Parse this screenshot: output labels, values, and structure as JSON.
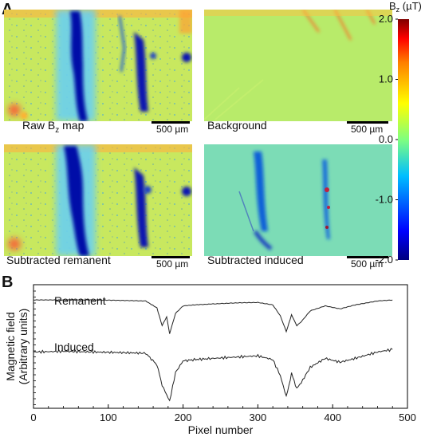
{
  "panel_labels": {
    "a": "A",
    "b": "B"
  },
  "maps": [
    {
      "id": "raw",
      "title_main": "Raw B",
      "title_sub": "z",
      "title_tail": " map",
      "scalebar": "500 µm"
    },
    {
      "id": "background",
      "title_main": "Background",
      "title_sub": "",
      "title_tail": "",
      "scalebar": "500 µm"
    },
    {
      "id": "remanent",
      "title_main": "Subtracted remanent",
      "title_sub": "",
      "title_tail": "",
      "scalebar": "500 µm"
    },
    {
      "id": "induced",
      "title_main": "Subtracted induced",
      "title_sub": "",
      "title_tail": "",
      "scalebar": "500 µm"
    }
  ],
  "colorbar": {
    "title_main": "B",
    "title_sub": "z",
    "title_tail": " (µT)",
    "ticks": [
      "2.0",
      "1.0",
      "0.0",
      "-1.0",
      "-2.0"
    ],
    "range": [
      -2.0,
      2.0
    ],
    "colormap": [
      "#00007f",
      "#0000ff",
      "#00bfff",
      "#7fff7f",
      "#ffff00",
      "#ff7f00",
      "#ff0000",
      "#7f0000"
    ]
  },
  "chart_data": {
    "type": "line",
    "xlabel": "Pixel number",
    "ylabel_line1": "Magnetic field",
    "ylabel_line2": "(Arbitrary units)",
    "xlim": [
      0,
      500
    ],
    "x_ticks": [
      "0",
      "100",
      "200",
      "300",
      "400",
      "500"
    ],
    "series": [
      {
        "name": "Remanent",
        "x": [
          0,
          40,
          80,
          120,
          150,
          165,
          172,
          178,
          182,
          190,
          200,
          215,
          240,
          270,
          300,
          320,
          330,
          338,
          345,
          352,
          358,
          370,
          390,
          410,
          430,
          460,
          480
        ],
        "y": [
          0.82,
          0.82,
          0.82,
          0.81,
          0.8,
          0.66,
          0.3,
          0.48,
          0.14,
          0.55,
          0.7,
          0.72,
          0.74,
          0.76,
          0.77,
          0.72,
          0.5,
          0.18,
          0.52,
          0.3,
          0.38,
          0.6,
          0.7,
          0.64,
          0.72,
          0.8,
          0.82
        ]
      },
      {
        "name": "Induced",
        "x": [
          0,
          40,
          80,
          120,
          150,
          165,
          172,
          178,
          182,
          190,
          200,
          215,
          240,
          270,
          300,
          320,
          330,
          338,
          345,
          352,
          358,
          370,
          390,
          410,
          430,
          460,
          480
        ],
        "y": [
          0.82,
          0.83,
          0.82,
          0.81,
          0.8,
          0.62,
          0.3,
          0.15,
          0.05,
          0.5,
          0.68,
          0.7,
          0.72,
          0.74,
          0.76,
          0.7,
          0.45,
          0.12,
          0.48,
          0.25,
          0.34,
          0.58,
          0.72,
          0.66,
          0.72,
          0.82,
          0.86
        ]
      }
    ]
  }
}
